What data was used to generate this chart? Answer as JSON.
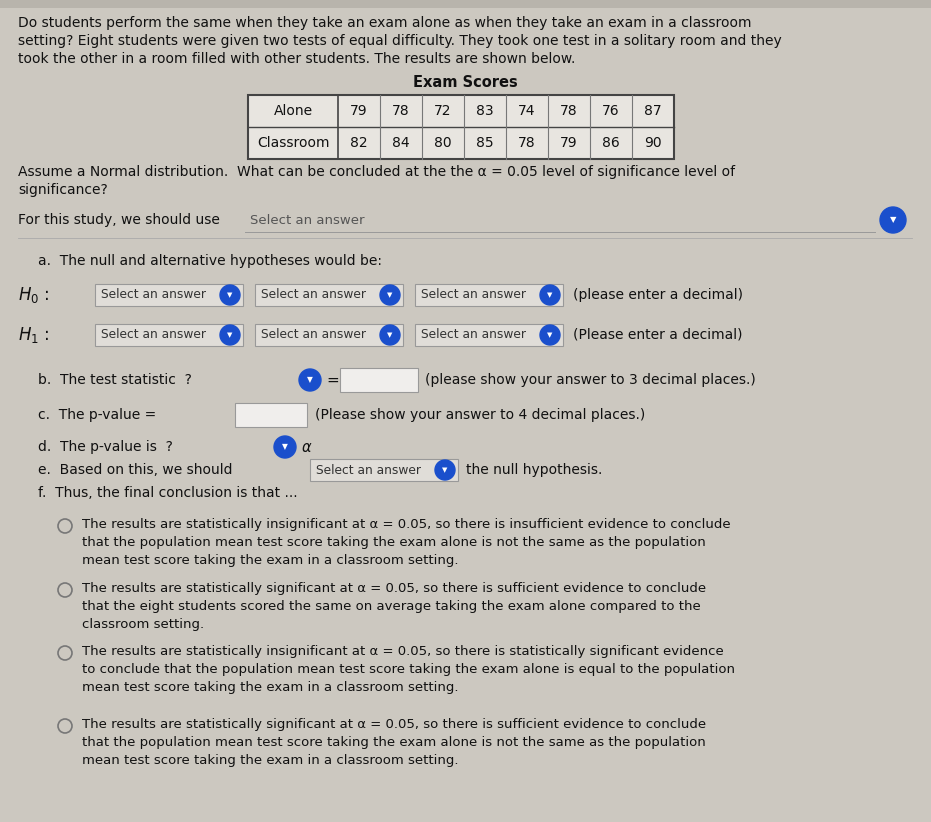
{
  "bg_color": "#ccc8c0",
  "text_color": "#111111",
  "title_text": "Do students perform the same when they take an exam alone as when they take an exam in a classroom\nsetting? Eight students were given two tests of equal difficulty. They took one test in a solitary room and they\ntook the other in a room filled with other students. The results are shown below.",
  "table_title": "Exam Scores",
  "alone_label": "Alone",
  "alone_vals": [
    "79",
    "78",
    "72",
    "83",
    "74",
    "78",
    "76",
    "87"
  ],
  "classroom_label": "Classroom",
  "classroom_vals": [
    "82",
    "84",
    "80",
    "85",
    "78",
    "79",
    "86",
    "90"
  ],
  "assume_text": "Assume a Normal distribution.  What can be concluded at the the α = 0.05 level of significance level of\nsignificance?",
  "for_study_text": "For this study, we should use",
  "select_answer_text": "Select an answer",
  "part_a_text": "a.  The null and alternative hypotheses would be:",
  "select_boxes": [
    "Select an answer",
    "Select an answer",
    "Select an answer"
  ],
  "H0_end": "(please enter a decimal)",
  "H1_end": "(Please enter a decimal)",
  "part_b_label": "b.  The test statistic  ?",
  "part_b_end": "(please show your answer to 3 decimal places.)",
  "part_c_label": "c.  The p-value =",
  "part_c_end": "(Please show your answer to 4 decimal places.)",
  "part_d_label": "d.  The p-value is  ?",
  "part_d_alpha": "α",
  "part_e_label": "e.  Based on this, we should",
  "part_e_end": "the null hypothesis.",
  "part_f_label": "f.  Thus, the final conclusion is that ...",
  "option1_line1": "The results are statistically insignificant at α = 0.05, so there is insufficient evidence to conclude",
  "option1_line2": "that the population mean test score taking the exam alone is not the same as the population",
  "option1_line3": "mean test score taking the exam in a classroom setting.",
  "option2_line1": "The results are statistically significant at α = 0.05, so there is sufficient evidence to conclude",
  "option2_line2": "that the eight students scored the same on average taking the exam alone compared to the",
  "option2_line3": "classroom setting.",
  "option3_line1": "The results are statistically insignificant at α = 0.05, so there is statistically significant evidence",
  "option3_line2": "to conclude that the population mean test score taking the exam alone is equal to the population",
  "option3_line3": "mean test score taking the exam in a classroom setting.",
  "option4_line1": "The results are statistically significant at α = 0.05, so there is sufficient evidence to conclude",
  "option4_line2": "that the population mean test score taking the exam alone is not the same as the population",
  "option4_line3": "mean test score taking the exam in a classroom setting.",
  "blue_color": "#1a4fcc",
  "select_bg": "#e0ddd8",
  "select_border": "#999999",
  "input_bg": "#f0eeec",
  "table_bg": "#e8e5e0",
  "table_border": "#444444"
}
